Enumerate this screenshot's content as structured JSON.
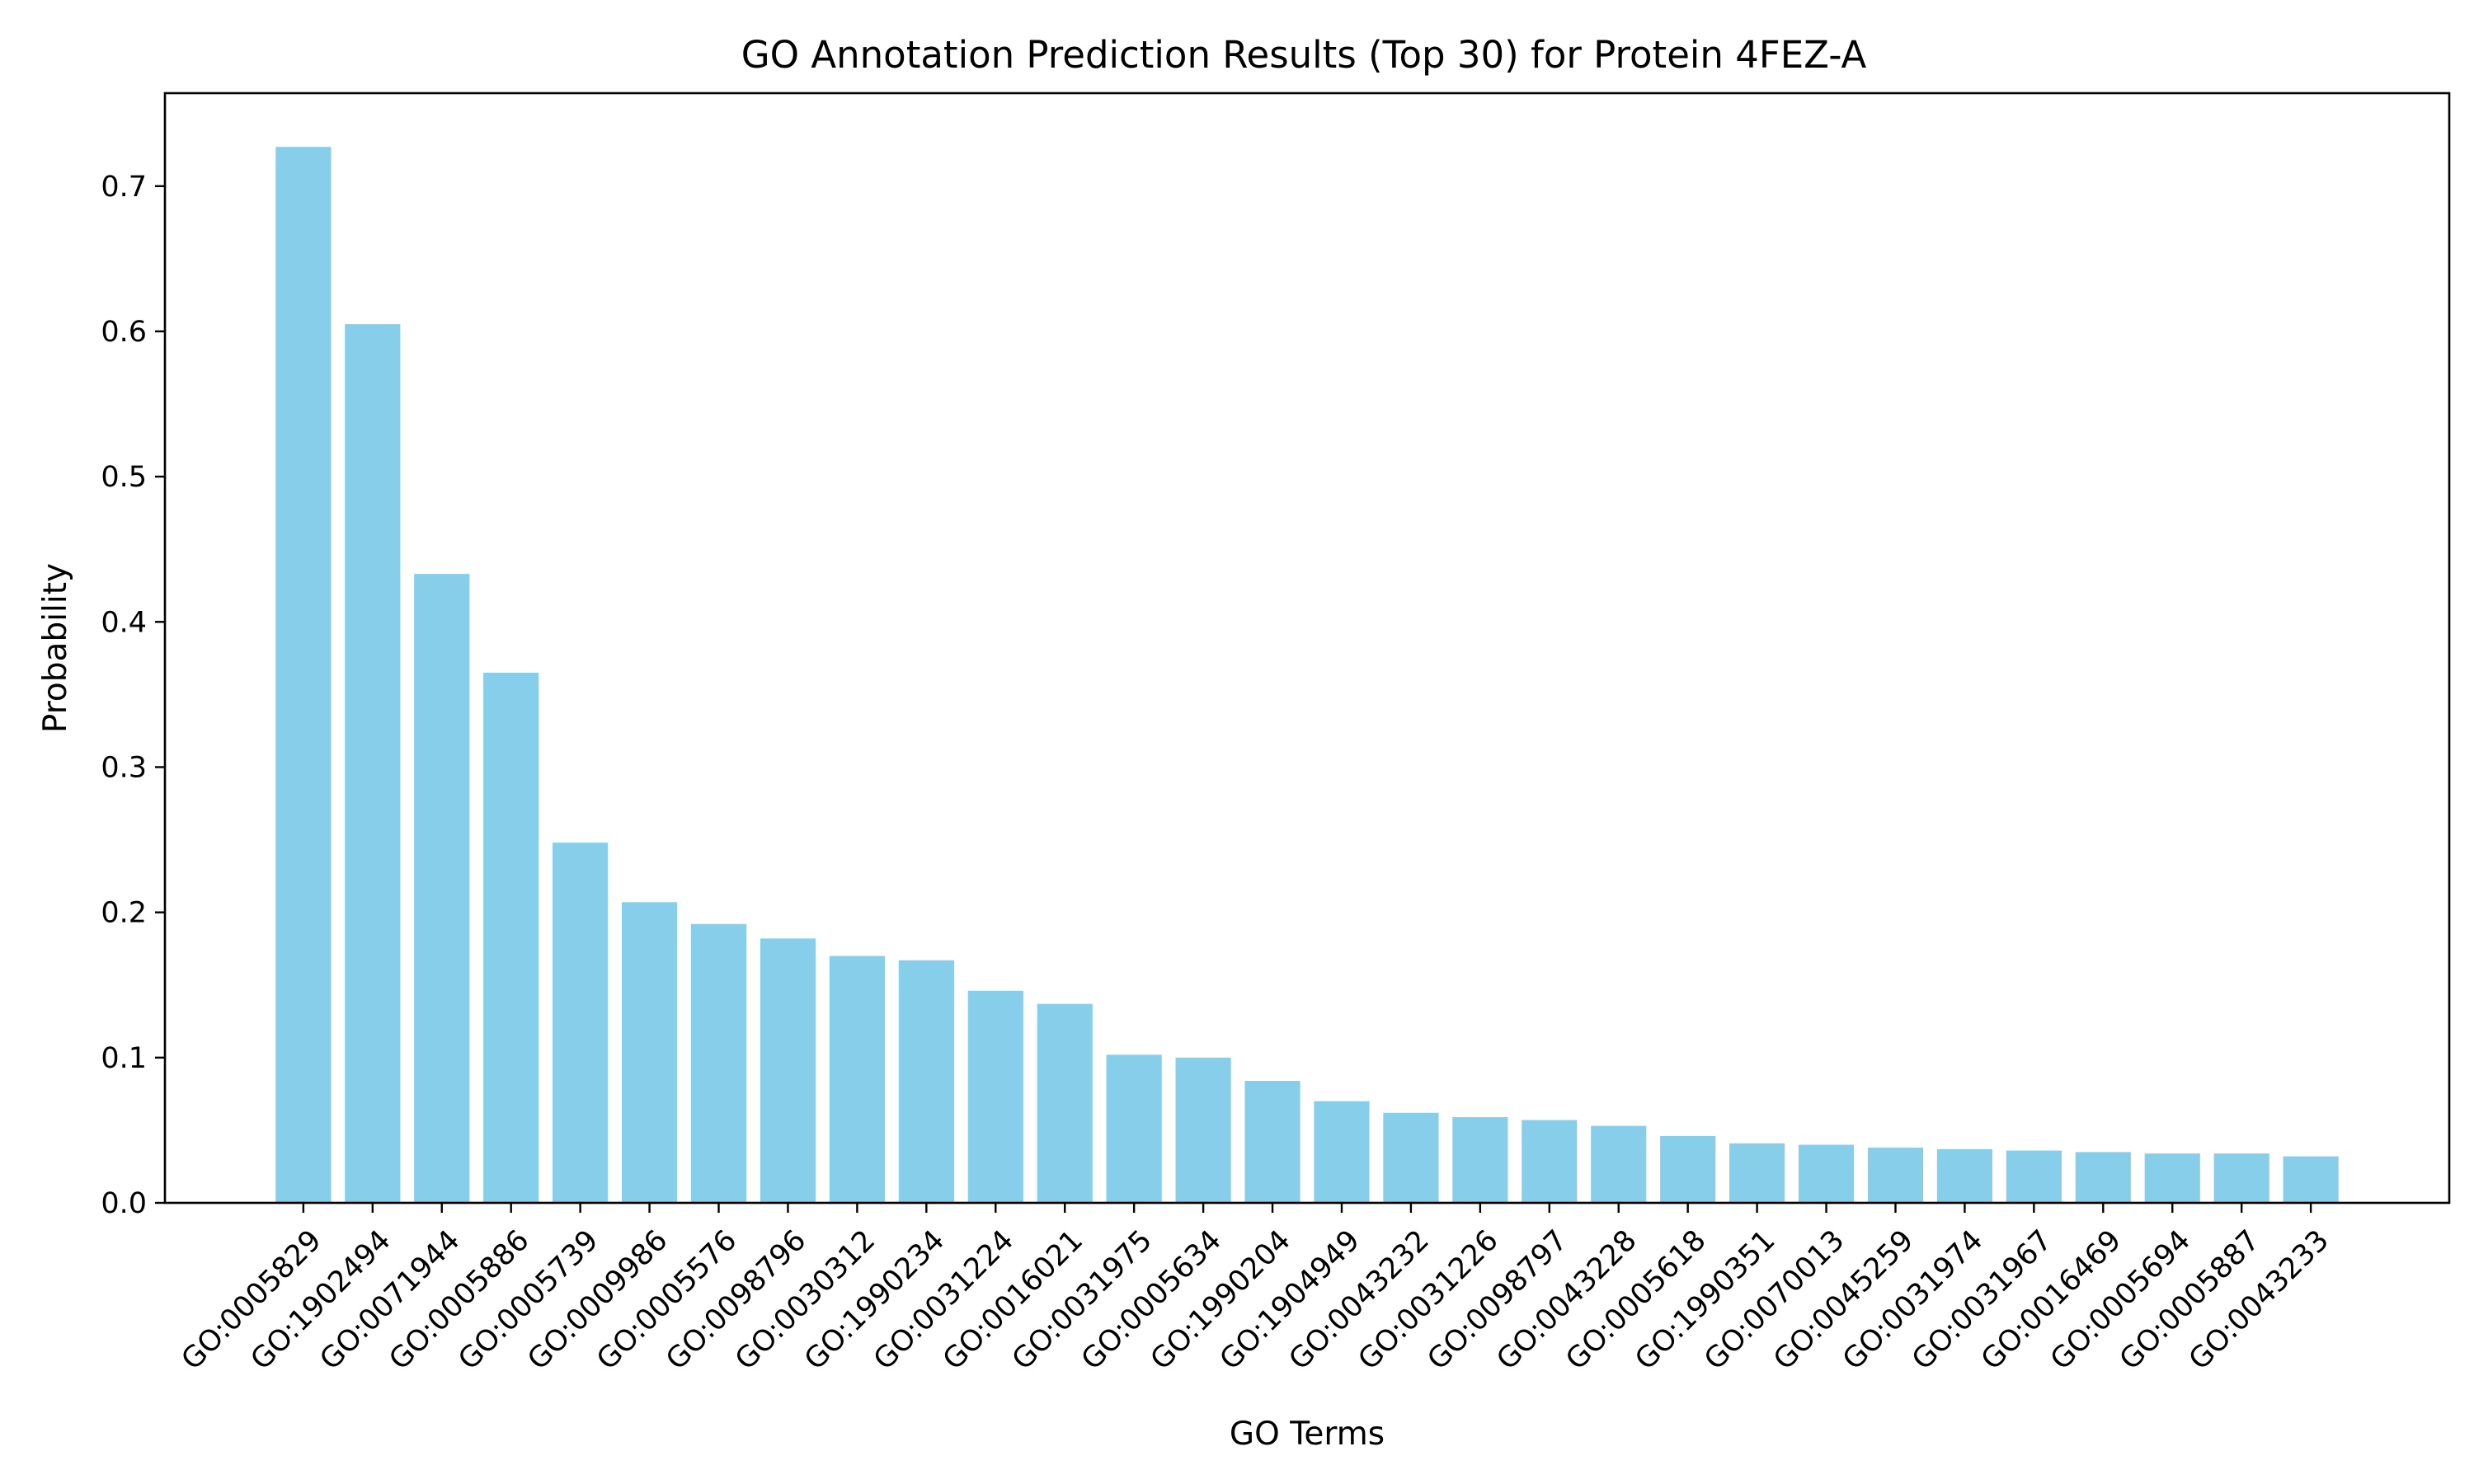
{
  "chart_data": {
    "type": "bar",
    "title": "GO Annotation Prediction Results (Top 30) for Protein 4FEZ-A",
    "xlabel": "GO Terms",
    "ylabel": "Probability",
    "ylim": [
      0,
      0.764
    ],
    "yticks": [
      0.0,
      0.1,
      0.2,
      0.3,
      0.4,
      0.5,
      0.6,
      0.7
    ],
    "ytick_labels": [
      "0.0",
      "0.1",
      "0.2",
      "0.3",
      "0.4",
      "0.5",
      "0.6",
      "0.7"
    ],
    "grid": false,
    "bar_color": "#87ceeb",
    "categories": [
      "GO:0005829",
      "GO:1902494",
      "GO:0071944",
      "GO:0005886",
      "GO:0005739",
      "GO:0009986",
      "GO:0005576",
      "GO:0098796",
      "GO:0030312",
      "GO:1990234",
      "GO:0031224",
      "GO:0016021",
      "GO:0031975",
      "GO:0005634",
      "GO:1990204",
      "GO:1904949",
      "GO:0043232",
      "GO:0031226",
      "GO:0098797",
      "GO:0043228",
      "GO:0005618",
      "GO:1990351",
      "GO:0070013",
      "GO:0045259",
      "GO:0031974",
      "GO:0031967",
      "GO:0016469",
      "GO:0005694",
      "GO:0005887",
      "GO:0043233"
    ],
    "values": [
      0.727,
      0.605,
      0.433,
      0.365,
      0.248,
      0.207,
      0.192,
      0.182,
      0.17,
      0.167,
      0.146,
      0.137,
      0.102,
      0.1,
      0.084,
      0.07,
      0.062,
      0.059,
      0.057,
      0.053,
      0.046,
      0.041,
      0.04,
      0.038,
      0.037,
      0.036,
      0.035,
      0.034,
      0.034,
      0.032
    ]
  }
}
